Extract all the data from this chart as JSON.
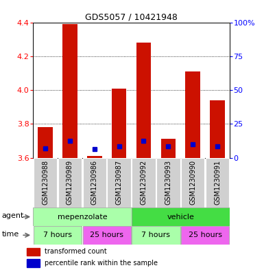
{
  "title": "GDS5057 / 10421948",
  "samples": [
    "GSM1230988",
    "GSM1230989",
    "GSM1230986",
    "GSM1230987",
    "GSM1230992",
    "GSM1230993",
    "GSM1230990",
    "GSM1230991"
  ],
  "red_values": [
    3.78,
    4.39,
    3.61,
    4.01,
    4.28,
    3.71,
    4.11,
    3.94
  ],
  "blue_values": [
    3.655,
    3.7,
    3.65,
    3.668,
    3.7,
    3.668,
    3.68,
    3.668
  ],
  "ymin": 3.6,
  "ymax": 4.4,
  "y2min": 0,
  "y2max": 100,
  "y_ticks": [
    3.6,
    3.8,
    4.0,
    4.2,
    4.4
  ],
  "y2_ticks": [
    0,
    25,
    50,
    75,
    100
  ],
  "y2_tick_labels": [
    "0",
    "25",
    "50",
    "75",
    "100%"
  ],
  "red_color": "#CC1100",
  "blue_color": "#0000CC",
  "bar_width": 0.6,
  "legend_red": "transformed count",
  "legend_blue": "percentile rank within the sample",
  "agent_light_green": "#AAFFAA",
  "agent_dark_green": "#44DD44",
  "time_light_green": "#AAFFAA",
  "time_pink": "#EE66EE",
  "gray_box": "#D0D0D0",
  "title_fontsize": 9,
  "label_fontsize": 7,
  "tick_fontsize": 8,
  "row_fontsize": 8
}
